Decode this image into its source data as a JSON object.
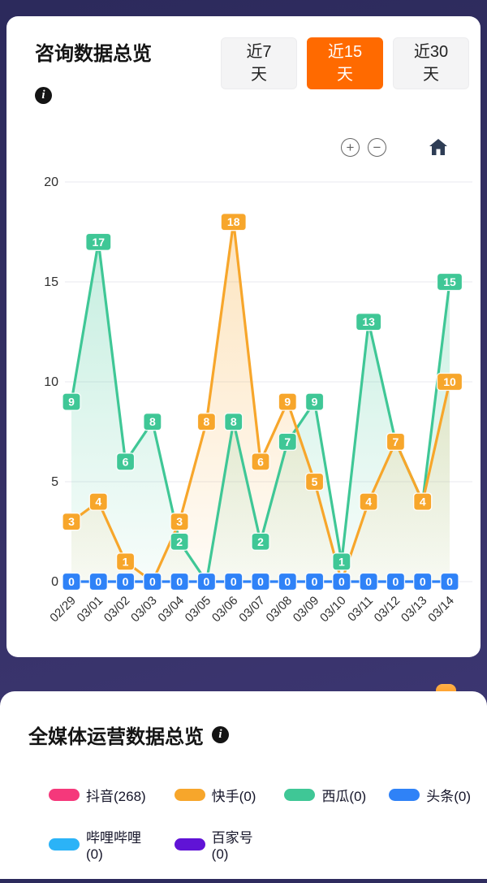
{
  "consultation": {
    "title": "咨询数据总览",
    "info_icon": "i",
    "tabs": [
      {
        "label": "近7天",
        "selected": false
      },
      {
        "label": "近15天",
        "selected": true
      },
      {
        "label": "近30天",
        "selected": false
      }
    ],
    "toolbar": {
      "zoom_in": "+",
      "zoom_out": "−",
      "home_icon": "home"
    },
    "selected_tab_color": "#ff6a00"
  },
  "chart_data": {
    "type": "line",
    "x": [
      "02/29",
      "03/01",
      "03/02",
      "03/03",
      "03/04",
      "03/05",
      "03/06",
      "03/07",
      "03/08",
      "03/09",
      "03/10",
      "03/11",
      "03/12",
      "03/13",
      "03/14"
    ],
    "yticks": [
      0,
      5,
      10,
      15,
      20
    ],
    "ylim": [
      0,
      20
    ],
    "grid": true,
    "label_style": "colored-badge-white-text",
    "series": [
      {
        "name": "green",
        "color": "#3fc796",
        "area": true,
        "values": [
          9,
          17,
          6,
          8,
          2,
          0,
          8,
          2,
          7,
          9,
          1,
          13,
          7,
          4,
          15
        ]
      },
      {
        "name": "orange",
        "color": "#f7a62b",
        "area": true,
        "values": [
          3,
          4,
          1,
          0,
          3,
          8,
          18,
          6,
          9,
          5,
          0,
          4,
          7,
          4,
          10
        ]
      },
      {
        "name": "blue",
        "color": "#2f82f7",
        "area": false,
        "values": [
          0,
          0,
          0,
          0,
          0,
          0,
          0,
          0,
          0,
          0,
          0,
          0,
          0,
          0,
          0
        ]
      }
    ]
  },
  "media": {
    "title": "全媒体运营数据总览",
    "info_icon": "i",
    "legend": [
      {
        "id": "douyin",
        "label": "抖音(268)",
        "color": "#f5387b"
      },
      {
        "id": "kuaishou",
        "label": "快手(0)",
        "color": "#f7a62b"
      },
      {
        "id": "xigua",
        "label": "西瓜(0)",
        "color": "#3fc796"
      },
      {
        "id": "toutiao",
        "label": "头条(0)",
        "color": "#2f82f7"
      },
      {
        "id": "bilibili",
        "label": "哔哩哔哩(0)",
        "color": "#2bb3f7"
      },
      {
        "id": "baijiahao",
        "label": "百家号(0)",
        "color": "#6013d6"
      }
    ]
  }
}
